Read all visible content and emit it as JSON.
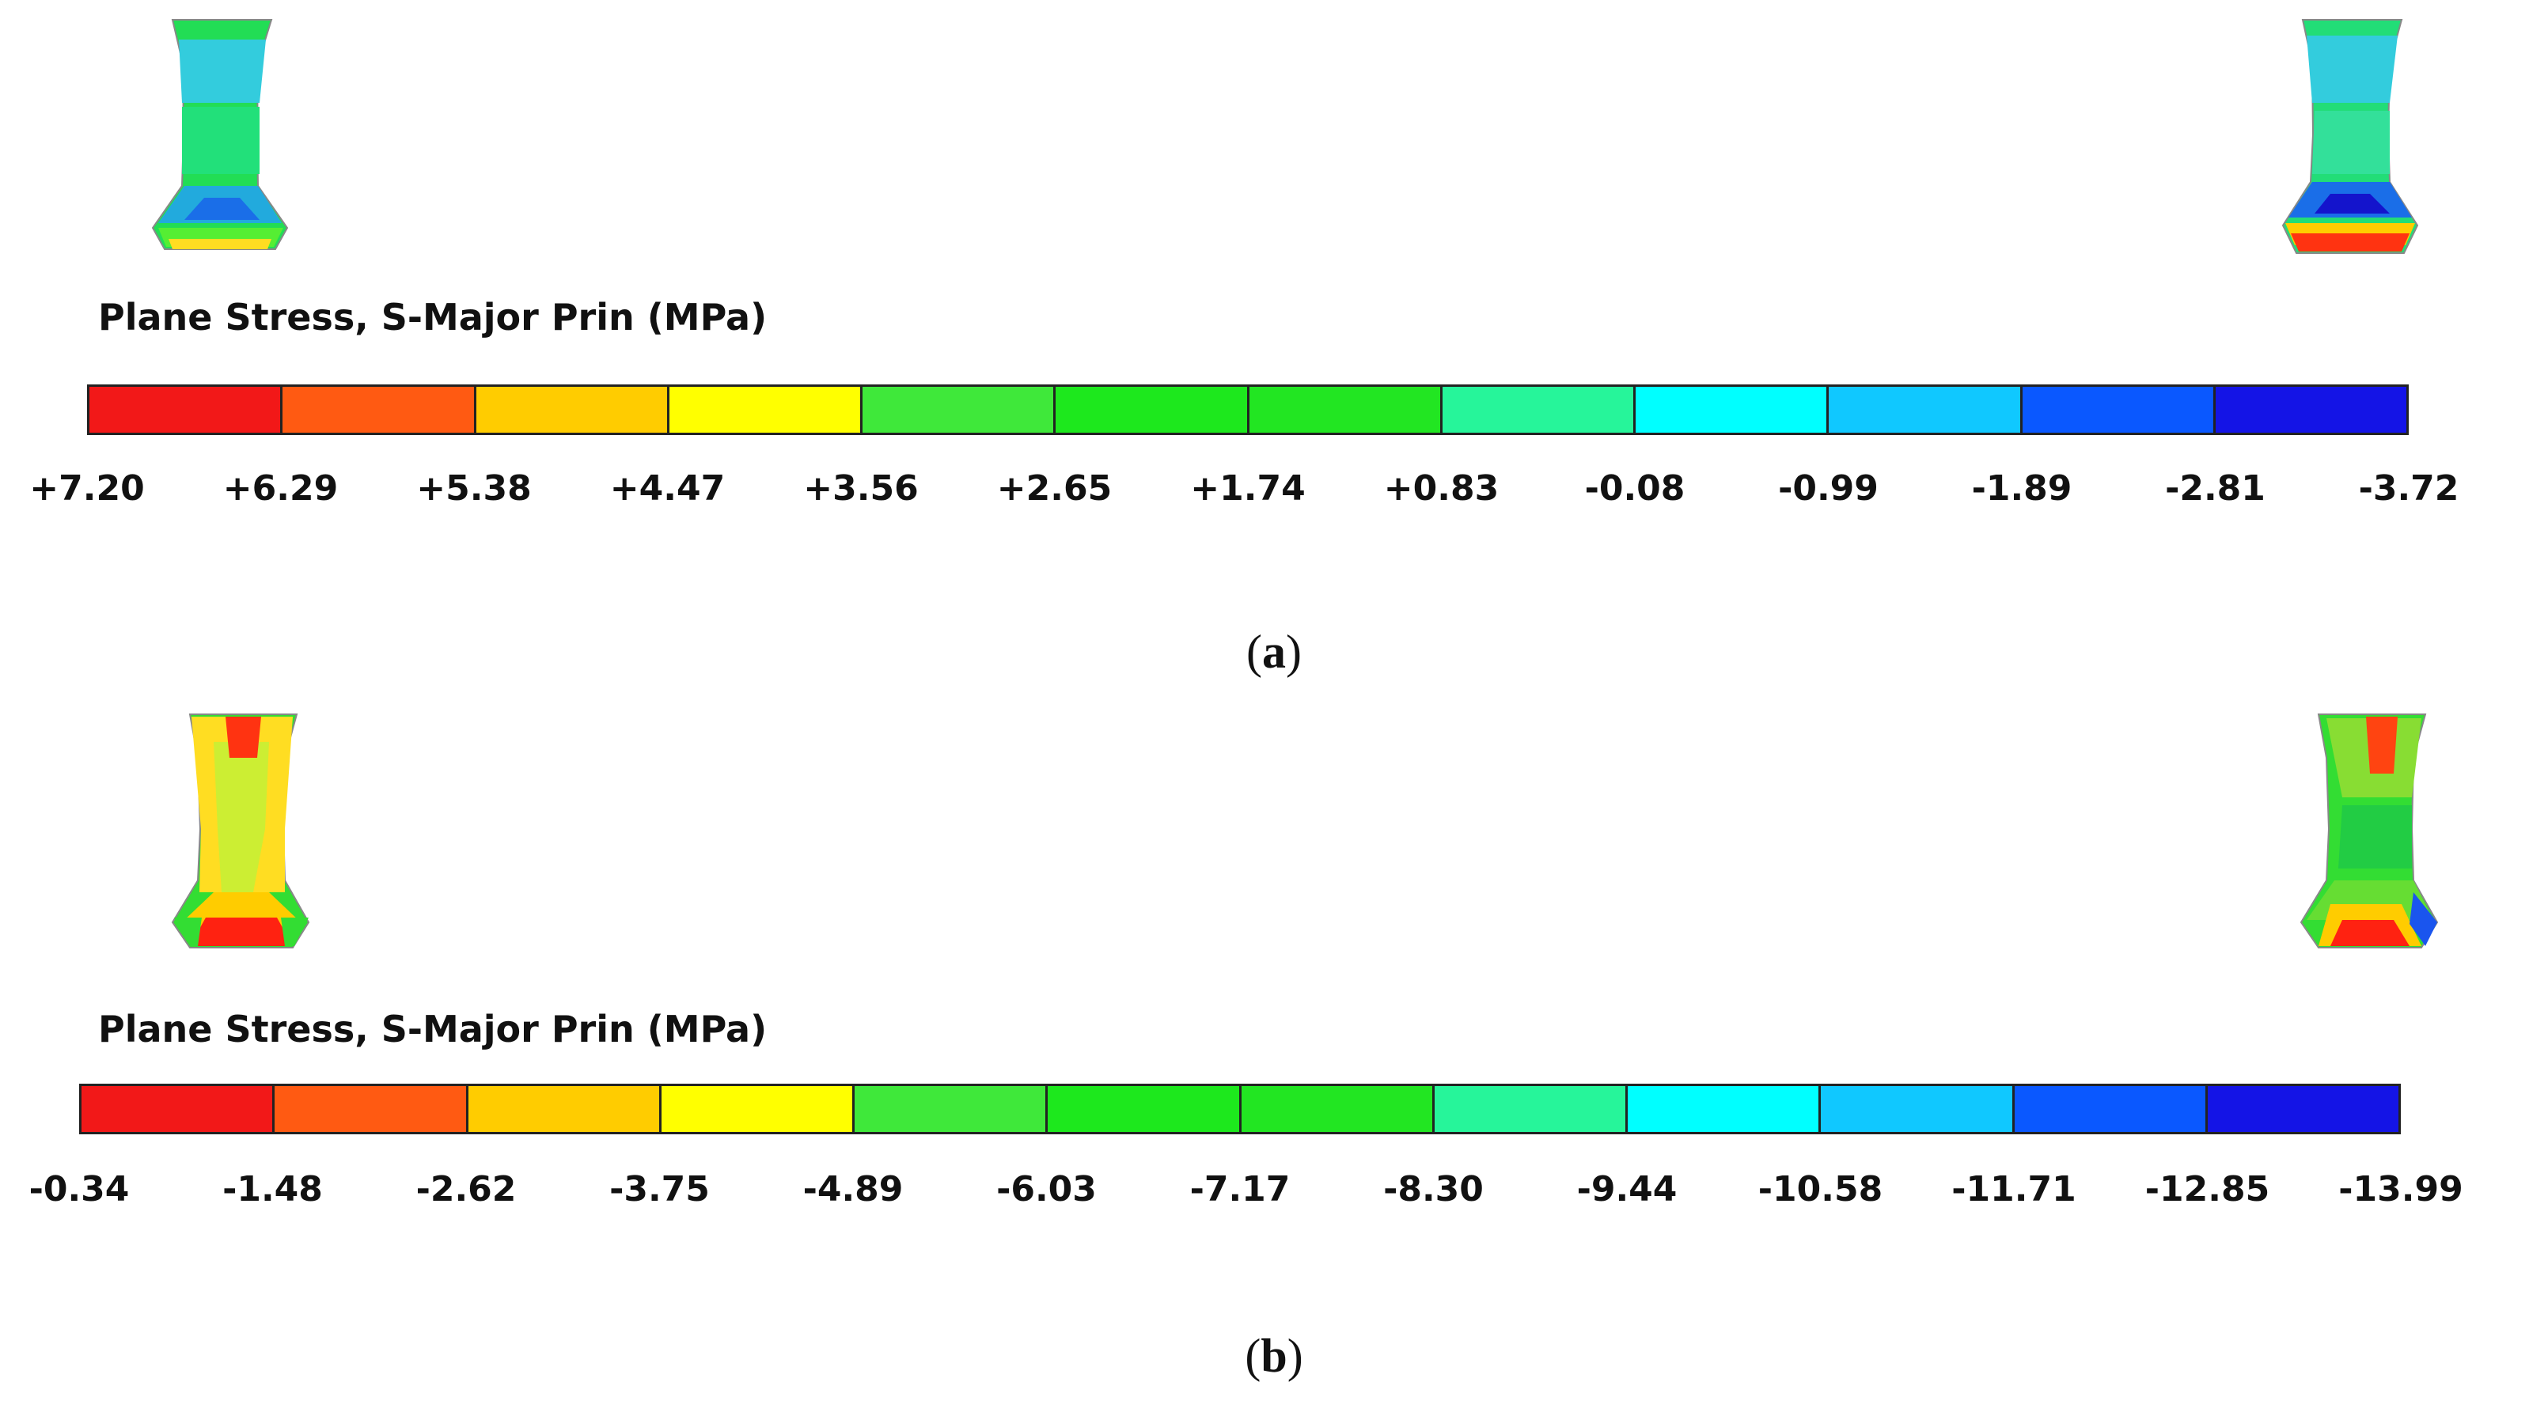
{
  "panels": [
    {
      "id": "a",
      "caption_open": "(",
      "caption_letter": "a",
      "caption_close": ")",
      "legend": {
        "title": "Plane Stress, S-Major Prin (MPa)",
        "ticks": [
          "+7.20",
          "+6.29",
          "+5.38",
          "+4.47",
          "+3.56",
          "+2.65",
          "+1.74",
          "+0.83",
          "-0.08",
          "-0.99",
          "-1.89",
          "-2.81",
          "-3.72"
        ]
      }
    },
    {
      "id": "b",
      "caption_open": "(",
      "caption_letter": "b",
      "caption_close": ")",
      "legend": {
        "title": "Plane Stress, S-Major Prin (MPa)",
        "ticks": [
          "-0.34",
          "-1.48",
          "-2.62",
          "-3.75",
          "-4.89",
          "-6.03",
          "-7.17",
          "-8.30",
          "-9.44",
          "-10.58",
          "-11.71",
          "-12.85",
          "-13.99"
        ]
      }
    }
  ],
  "colors": {
    "bands": [
      "#f21818",
      "#ff5a12",
      "#ffcc00",
      "#ffff00",
      "#3fe83a",
      "#1de81d",
      "#22e622",
      "#26f59a",
      "#00ffff",
      "#10c8ff",
      "#0a58ff",
      "#1414e6"
    ],
    "specimen_outline": "#888888"
  }
}
